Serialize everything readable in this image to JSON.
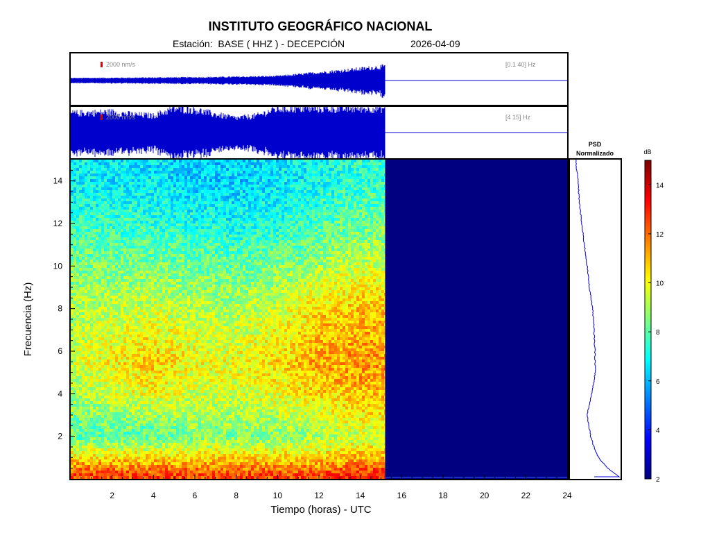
{
  "header": {
    "title": "INSTITUTO GEOGRÁFICO NACIONAL",
    "station": "Estación:  BASE ( HHZ ) - DECEPCIÓN",
    "date": "2026-04-09"
  },
  "chart_data": [
    {
      "type": "line",
      "panel": "seismogram-broadband",
      "amplitude_scale_label": "2000 nm/s",
      "band_label": "[0.1 40] Hz",
      "x_range_hours": [
        0,
        24
      ],
      "data_end_hours": 15.2,
      "envelope": {
        "x": [
          0,
          2,
          4,
          6,
          8,
          10,
          11,
          12,
          13,
          14,
          15.2
        ],
        "amplitude": [
          0.1,
          0.11,
          0.12,
          0.13,
          0.15,
          0.18,
          0.25,
          0.33,
          0.4,
          0.48,
          0.58
        ]
      },
      "color": "#0000cc"
    },
    {
      "type": "line",
      "panel": "seismogram-filtered",
      "amplitude_scale_label": "2000 nm/s",
      "band_label": "[4 15] Hz",
      "x_range_hours": [
        0,
        24
      ],
      "data_end_hours": 15.2,
      "envelope": {
        "x": [
          0,
          2,
          3,
          4,
          5,
          6,
          7,
          8,
          9,
          10,
          11,
          12,
          13,
          14,
          15.2
        ],
        "amplitude": [
          0.8,
          0.85,
          0.75,
          0.7,
          1.0,
          0.95,
          0.75,
          0.6,
          0.7,
          1.0,
          1.0,
          1.0,
          1.0,
          1.0,
          1.0
        ]
      },
      "color": "#0000cc"
    },
    {
      "type": "heatmap",
      "panel": "spectrogram",
      "xlabel": "Tiempo (horas) - UTC",
      "ylabel": "Frecuencia  (Hz)",
      "xlim": [
        0,
        24
      ],
      "ylim": [
        0,
        15
      ],
      "x_ticks": [
        2,
        4,
        6,
        8,
        10,
        12,
        14,
        16,
        18,
        20,
        22,
        24
      ],
      "y_ticks": [
        2,
        4,
        6,
        8,
        10,
        12,
        14
      ],
      "data_end_hours": 15.2,
      "colormap": "jet",
      "color_range_dB": [
        2,
        15
      ],
      "approx_level_dB": {
        "time_hours": [
          0,
          4,
          6,
          8,
          10,
          12,
          14,
          15.2
        ],
        "freq_hz": [
          0.2,
          1,
          2,
          4,
          5.5,
          8,
          10,
          12,
          14
        ],
        "values": [
          [
            12.5,
            12.5,
            12.5,
            12.5,
            12.5,
            12.5,
            13,
            13
          ],
          [
            10.5,
            10.5,
            10.5,
            10.5,
            10.5,
            10.5,
            11,
            11
          ],
          [
            8,
            8,
            8.5,
            8.5,
            8.5,
            9,
            9.5,
            9.5
          ],
          [
            9,
            10,
            9.5,
            9.5,
            10,
            10.5,
            11,
            11
          ],
          [
            9.5,
            10.8,
            10,
            10,
            10.5,
            11.2,
            11.5,
            11.5
          ],
          [
            9,
            9.5,
            9.2,
            9,
            9.5,
            10.5,
            10.8,
            10.8
          ],
          [
            8.5,
            8.5,
            8.3,
            8.3,
            8.5,
            9,
            9.5,
            9.5
          ],
          [
            7.5,
            7.5,
            7.2,
            7.0,
            7.3,
            7.8,
            8.2,
            8.2
          ],
          [
            6.8,
            6.6,
            6.3,
            6.3,
            6.6,
            7.0,
            7.5,
            7.5
          ]
        ]
      }
    },
    {
      "type": "line",
      "panel": "psd-normalized",
      "title": "PSD\nNormalizado",
      "title_line1": "PSD",
      "title_line2": "Normalizado",
      "freq_hz": [
        0.1,
        0.5,
        1,
        1.5,
        2,
        3,
        4,
        5,
        6,
        7,
        8,
        9,
        10,
        11,
        12,
        13,
        14,
        15
      ],
      "normalized_value": [
        1.0,
        0.75,
        0.55,
        0.45,
        0.38,
        0.3,
        0.4,
        0.48,
        0.47,
        0.45,
        0.42,
        0.35,
        0.3,
        0.24,
        0.18,
        0.13,
        0.1,
        0.05
      ],
      "color": "#0000cc"
    },
    {
      "type": "colorbar",
      "label": "dB",
      "range": [
        2,
        15
      ],
      "ticks": [
        2,
        4,
        6,
        8,
        10,
        12,
        14
      ]
    }
  ]
}
